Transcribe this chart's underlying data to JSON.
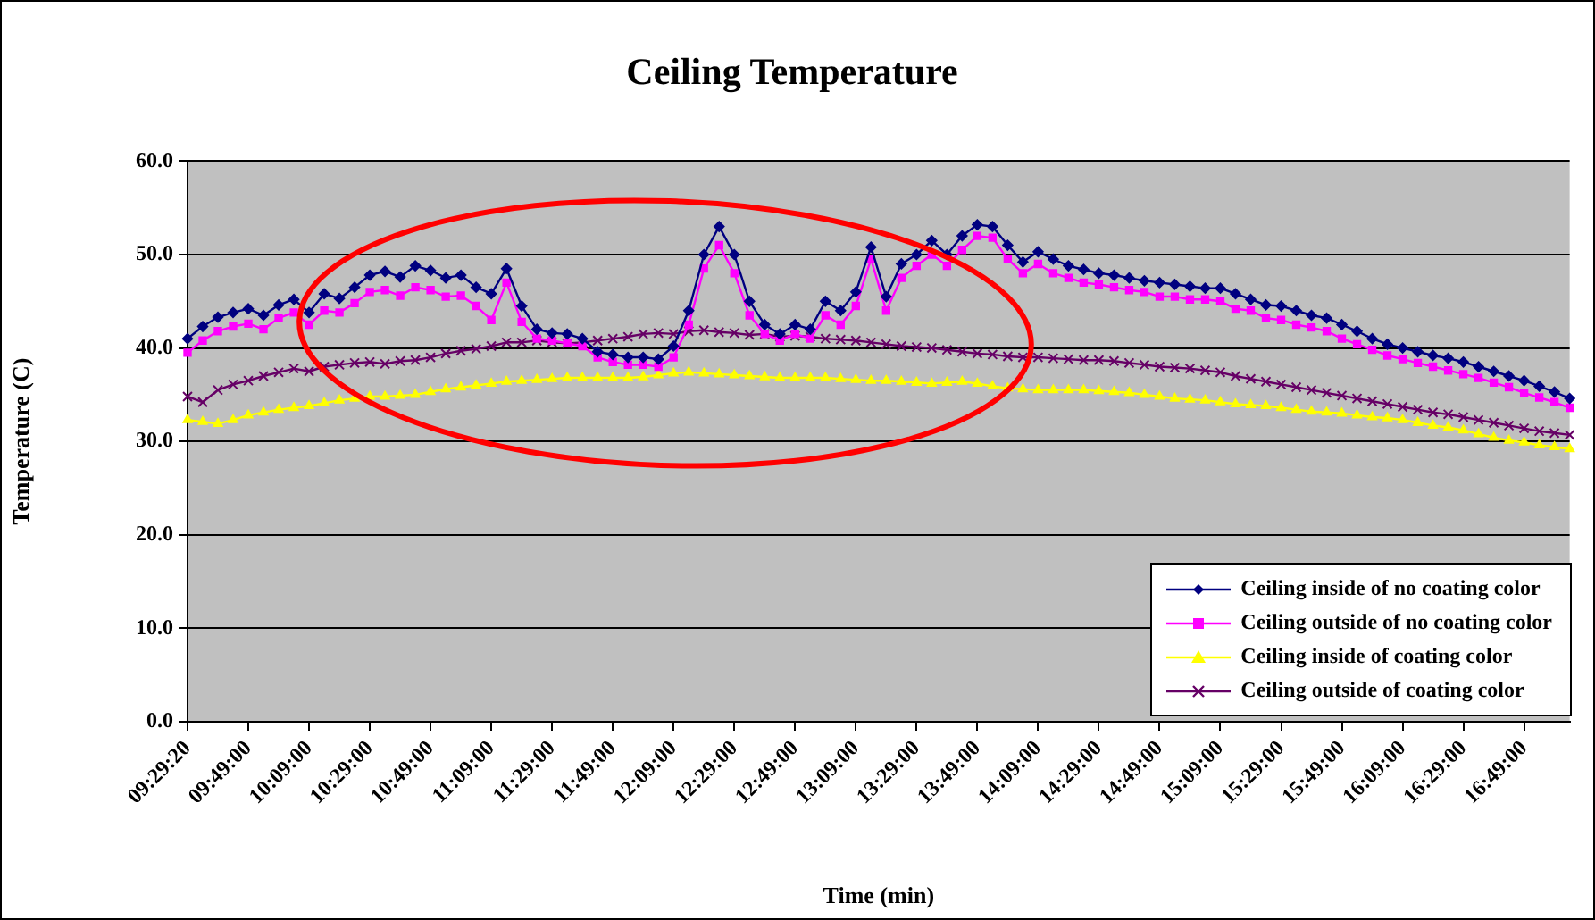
{
  "chart_data": {
    "type": "line",
    "title": "Ceiling Temperature",
    "xlabel": "Time (min)",
    "ylabel": "Temperature (C)",
    "categories": [
      "09:29:20",
      null,
      null,
      null,
      "09:49:00",
      null,
      null,
      null,
      "10:09:00",
      null,
      null,
      null,
      "10:29:00",
      null,
      null,
      null,
      "10:49:00",
      null,
      null,
      null,
      "11:09:00",
      null,
      null,
      null,
      "11:29:00",
      null,
      null,
      null,
      "11:49:00",
      null,
      null,
      null,
      "12:09:00",
      null,
      null,
      null,
      "12:29:00",
      null,
      null,
      null,
      "12:49:00",
      null,
      null,
      null,
      "13:09:00",
      null,
      null,
      null,
      "13:29:00",
      null,
      null,
      null,
      "13:49:00",
      null,
      null,
      null,
      "14:09:00",
      null,
      null,
      null,
      "14:29:00",
      null,
      null,
      null,
      "14:49:00",
      null,
      null,
      null,
      "15:09:00",
      null,
      null,
      null,
      "15:29:00",
      null,
      null,
      null,
      "15:49:00",
      null,
      null,
      null,
      "16:09:00",
      null,
      null,
      null,
      "16:29:00",
      null,
      null,
      null,
      "16:49:00",
      null,
      null,
      null
    ],
    "ylim": [
      0,
      60
    ],
    "yticks": [
      {
        "value": 0,
        "label": "0.0"
      },
      {
        "value": 10,
        "label": "10.0"
      },
      {
        "value": 20,
        "label": "20.0"
      },
      {
        "value": 30,
        "label": "30.0"
      },
      {
        "value": 40,
        "label": "40.0"
      },
      {
        "value": 50,
        "label": "50.0"
      },
      {
        "value": 60,
        "label": "60.0"
      }
    ],
    "grid": "y",
    "legend": "bottom right",
    "series": [
      {
        "name": "Ceiling inside of no coating color",
        "color": "#000080",
        "marker": "diamond",
        "values": [
          41.0,
          42.3,
          43.3,
          43.8,
          44.2,
          43.5,
          44.6,
          45.2,
          43.8,
          45.8,
          45.3,
          46.5,
          47.8,
          48.2,
          47.6,
          48.8,
          48.3,
          47.5,
          47.8,
          46.5,
          45.8,
          48.5,
          44.5,
          42.0,
          41.6,
          41.5,
          41.0,
          39.6,
          39.3,
          39.0,
          39.0,
          38.8,
          40.2,
          44.0,
          50.0,
          53.0,
          50.0,
          45.0,
          42.5,
          41.5,
          42.5,
          42.0,
          45.0,
          44.0,
          46.0,
          50.8,
          45.5,
          49.0,
          50.0,
          51.5,
          50.0,
          52.0,
          53.2,
          53.0,
          51.0,
          49.2,
          50.3,
          49.5,
          48.8,
          48.4,
          48.0,
          47.8,
          47.5,
          47.2,
          47.0,
          46.8,
          46.6,
          46.4,
          46.4,
          45.8,
          45.2,
          44.6,
          44.5,
          44.0,
          43.5,
          43.2,
          42.5,
          41.8,
          41.0,
          40.4,
          40.0,
          39.6,
          39.2,
          38.9,
          38.5,
          38.0,
          37.5,
          37.0,
          36.5,
          35.9,
          35.3,
          34.6
        ]
      },
      {
        "name": "Ceiling outside of no coating color",
        "color": "#ff00ff",
        "marker": "square",
        "values": [
          39.5,
          40.8,
          41.8,
          42.3,
          42.6,
          42.0,
          43.2,
          43.8,
          42.5,
          44.0,
          43.8,
          44.8,
          46.0,
          46.2,
          45.6,
          46.5,
          46.2,
          45.5,
          45.6,
          44.5,
          43.0,
          47.0,
          42.8,
          41.0,
          40.8,
          40.5,
          40.2,
          39.0,
          38.5,
          38.2,
          38.2,
          38.0,
          39.0,
          42.5,
          48.5,
          51.0,
          48.0,
          43.5,
          41.5,
          40.8,
          41.5,
          41.0,
          43.5,
          42.5,
          44.5,
          49.5,
          44.0,
          47.5,
          48.8,
          50.0,
          48.8,
          50.5,
          52.0,
          51.8,
          49.5,
          48.0,
          49.0,
          48.0,
          47.5,
          47.0,
          46.8,
          46.5,
          46.2,
          46.0,
          45.5,
          45.5,
          45.2,
          45.2,
          45.0,
          44.2,
          44.0,
          43.2,
          43.0,
          42.5,
          42.2,
          41.8,
          41.0,
          40.4,
          39.8,
          39.2,
          38.8,
          38.4,
          38.0,
          37.6,
          37.2,
          36.8,
          36.3,
          35.8,
          35.2,
          34.7,
          34.2,
          33.6
        ]
      },
      {
        "name": "Ceiling inside of coating color",
        "color": "#ffff00",
        "marker": "triangle",
        "values": [
          32.3,
          32.1,
          31.9,
          32.3,
          32.8,
          33.1,
          33.4,
          33.6,
          33.8,
          34.1,
          34.4,
          34.6,
          34.8,
          34.8,
          34.9,
          35.0,
          35.3,
          35.6,
          35.8,
          36.0,
          36.2,
          36.4,
          36.5,
          36.6,
          36.7,
          36.8,
          36.8,
          36.8,
          36.8,
          36.8,
          36.9,
          37.1,
          37.3,
          37.4,
          37.3,
          37.2,
          37.1,
          37.0,
          36.9,
          36.8,
          36.8,
          36.8,
          36.8,
          36.7,
          36.6,
          36.5,
          36.5,
          36.4,
          36.3,
          36.2,
          36.3,
          36.4,
          36.2,
          35.9,
          35.7,
          35.6,
          35.5,
          35.5,
          35.5,
          35.5,
          35.4,
          35.3,
          35.2,
          35.0,
          34.8,
          34.6,
          34.5,
          34.4,
          34.2,
          34.0,
          33.9,
          33.8,
          33.6,
          33.4,
          33.2,
          33.1,
          33.0,
          32.8,
          32.6,
          32.5,
          32.3,
          32.0,
          31.7,
          31.5,
          31.2,
          30.8,
          30.4,
          30.1,
          29.9,
          29.6,
          29.4,
          29.2
        ]
      },
      {
        "name": "Ceiling outside of coating color",
        "color": "#660066",
        "marker": "cross",
        "values": [
          34.8,
          34.2,
          35.5,
          36.1,
          36.5,
          37.0,
          37.4,
          37.8,
          37.5,
          38.0,
          38.2,
          38.4,
          38.5,
          38.3,
          38.6,
          38.7,
          39.0,
          39.4,
          39.7,
          39.9,
          40.2,
          40.6,
          40.6,
          40.8,
          40.6,
          40.5,
          40.6,
          40.8,
          41.0,
          41.2,
          41.5,
          41.6,
          41.5,
          41.8,
          41.9,
          41.7,
          41.6,
          41.4,
          41.5,
          41.2,
          41.3,
          41.2,
          41.0,
          40.9,
          40.8,
          40.6,
          40.4,
          40.2,
          40.1,
          40.0,
          39.8,
          39.6,
          39.4,
          39.3,
          39.1,
          39.0,
          39.0,
          38.9,
          38.8,
          38.7,
          38.7,
          38.6,
          38.4,
          38.2,
          38.0,
          37.9,
          37.8,
          37.6,
          37.4,
          37.0,
          36.7,
          36.4,
          36.1,
          35.8,
          35.5,
          35.2,
          34.9,
          34.6,
          34.3,
          34.0,
          33.7,
          33.4,
          33.1,
          32.9,
          32.6,
          32.3,
          32.0,
          31.7,
          31.4,
          31.1,
          30.9,
          30.7
        ]
      }
    ]
  }
}
